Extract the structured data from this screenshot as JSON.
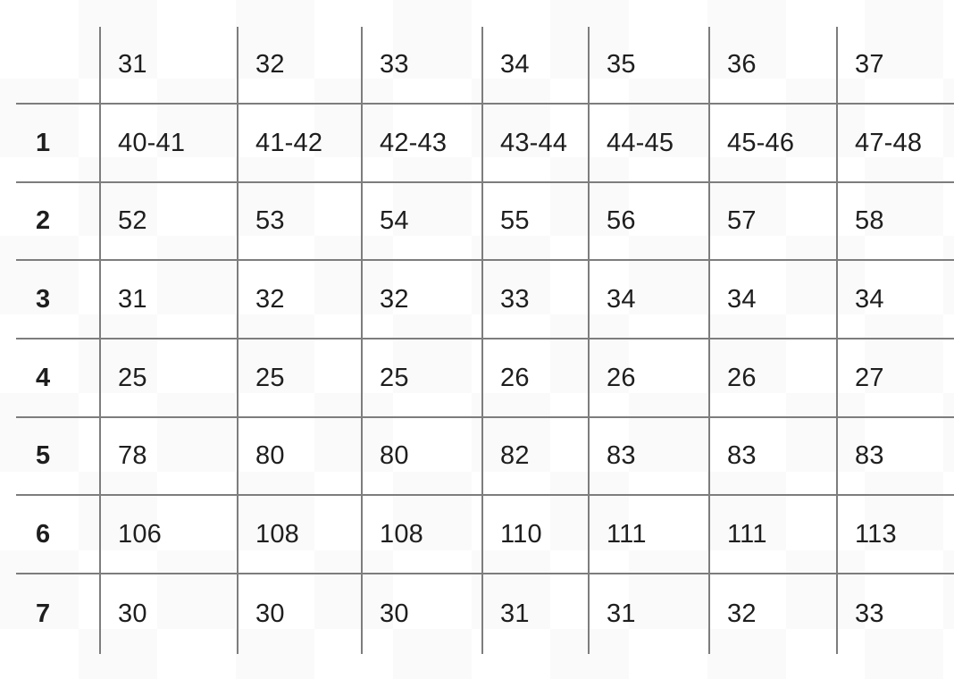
{
  "chart_data": {
    "type": "table",
    "title": "",
    "columns": [
      "",
      "31",
      "32",
      "33",
      "34",
      "35",
      "36",
      "37"
    ],
    "rows": [
      {
        "label": "1",
        "values": [
          "40-41",
          "41-42",
          "42-43",
          "43-44",
          "44-45",
          "45-46",
          "47-48"
        ]
      },
      {
        "label": "2",
        "values": [
          "52",
          "53",
          "54",
          "55",
          "56",
          "57",
          "58"
        ]
      },
      {
        "label": "3",
        "values": [
          "31",
          "32",
          "32",
          "33",
          "34",
          "34",
          "34"
        ]
      },
      {
        "label": "4",
        "values": [
          "25",
          "25",
          "25",
          "26",
          "26",
          "26",
          "27"
        ]
      },
      {
        "label": "5",
        "values": [
          "78",
          "80",
          "80",
          "82",
          "83",
          "83",
          "83"
        ]
      },
      {
        "label": "6",
        "values": [
          "106",
          "108",
          "108",
          "110",
          "111",
          "111",
          "113"
        ]
      },
      {
        "label": "7",
        "values": [
          "30",
          "30",
          "30",
          "31",
          "31",
          "32",
          "33"
        ]
      }
    ],
    "layout": {
      "grid": "internal-lines-only",
      "header_position": "top-row-and-left-column",
      "legend": "none"
    }
  },
  "style": {
    "border_color": "#7d7d7d",
    "text_color": "#1e1e1e",
    "background_color": "#ffffff",
    "checker_tint": "#fafafa"
  }
}
